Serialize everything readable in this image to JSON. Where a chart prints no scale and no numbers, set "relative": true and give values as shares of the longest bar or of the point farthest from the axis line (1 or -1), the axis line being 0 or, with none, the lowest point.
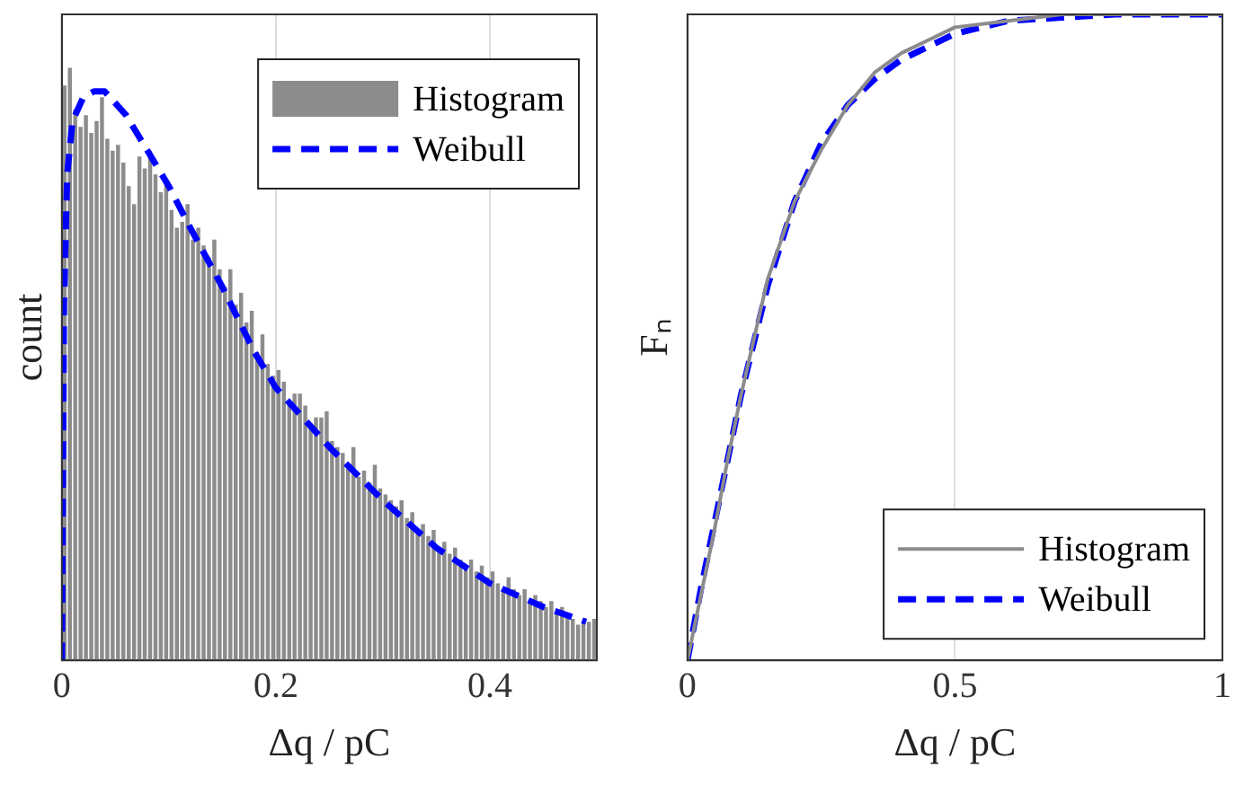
{
  "chart_data": [
    {
      "type": "histogram",
      "xlabel": "Δq / pC",
      "ylabel": "count",
      "relative": true,
      "xlim": [
        0,
        0.5
      ],
      "xticks": [
        0,
        0.2,
        0.4
      ],
      "tick_labels": "x",
      "grid": "x",
      "legend": "top right",
      "bins": [
        0,
        0.005,
        0.01,
        0.015,
        0.02,
        0.025,
        0.03,
        0.035,
        0.04,
        0.045,
        0.05,
        0.055,
        0.06,
        0.065,
        0.07,
        0.075,
        0.08,
        0.085,
        0.09,
        0.095,
        0.1,
        0.105,
        0.11,
        0.115,
        0.12,
        0.125,
        0.13,
        0.135,
        0.14,
        0.145,
        0.15,
        0.155,
        0.16,
        0.165,
        0.17,
        0.175,
        0.18,
        0.185,
        0.19,
        0.195,
        0.2,
        0.205,
        0.21,
        0.215,
        0.22,
        0.225,
        0.23,
        0.235,
        0.24,
        0.245,
        0.25,
        0.255,
        0.26,
        0.265,
        0.27,
        0.275,
        0.28,
        0.285,
        0.29,
        0.295,
        0.3,
        0.305,
        0.31,
        0.315,
        0.32,
        0.325,
        0.33,
        0.335,
        0.34,
        0.345,
        0.35,
        0.355,
        0.36,
        0.365,
        0.37,
        0.375,
        0.38,
        0.385,
        0.39,
        0.395,
        0.4,
        0.405,
        0.41,
        0.415,
        0.42,
        0.425,
        0.43,
        0.435,
        0.44,
        0.445,
        0.45,
        0.455,
        0.46,
        0.465,
        0.47,
        0.475,
        0.48,
        0.485,
        0.49,
        0.495,
        0.5
      ],
      "series": [
        {
          "name": "Histogram",
          "type": "histogram",
          "color": "#8c8c8c",
          "values": [
            0.97,
            1.0,
            0.93,
            0.9,
            0.92,
            0.89,
            0.91,
            0.95,
            0.88,
            0.86,
            0.87,
            0.84,
            0.8,
            0.77,
            0.85,
            0.83,
            0.86,
            0.82,
            0.79,
            0.81,
            0.76,
            0.73,
            0.74,
            0.77,
            0.71,
            0.73,
            0.7,
            0.68,
            0.71,
            0.66,
            0.63,
            0.66,
            0.6,
            0.62,
            0.57,
            0.59,
            0.52,
            0.55,
            0.5,
            0.48,
            0.49,
            0.47,
            0.44,
            0.45,
            0.45,
            0.43,
            0.4,
            0.41,
            0.41,
            0.42,
            0.37,
            0.36,
            0.35,
            0.33,
            0.36,
            0.31,
            0.32,
            0.3,
            0.33,
            0.29,
            0.28,
            0.27,
            0.26,
            0.27,
            0.24,
            0.25,
            0.22,
            0.23,
            0.21,
            0.22,
            0.19,
            0.2,
            0.18,
            0.19,
            0.17,
            0.16,
            0.17,
            0.15,
            0.16,
            0.14,
            0.15,
            0.13,
            0.12,
            0.14,
            0.12,
            0.11,
            0.12,
            0.1,
            0.11,
            0.1,
            0.09,
            0.1,
            0.08,
            0.09,
            0.08,
            0.07,
            0.06,
            0.065,
            0.065,
            0.07
          ]
        },
        {
          "name": "Weibull",
          "type": "line",
          "color": "#0000ff",
          "line_style": "dashed",
          "x": [
            0,
            0.002,
            0.005,
            0.01,
            0.02,
            0.03,
            0.04,
            0.06,
            0.08,
            0.1,
            0.12,
            0.15,
            0.18,
            0.2,
            0.25,
            0.3,
            0.35,
            0.4,
            0.45,
            0.49
          ],
          "values": [
            0,
            0.6,
            0.82,
            0.91,
            0.95,
            0.96,
            0.96,
            0.92,
            0.86,
            0.8,
            0.73,
            0.63,
            0.52,
            0.46,
            0.36,
            0.27,
            0.19,
            0.13,
            0.09,
            0.065
          ]
        }
      ]
    },
    {
      "type": "line",
      "xlabel": "Δq / pC",
      "ylabel": "Fₙ",
      "relative": true,
      "xlim": [
        0,
        1
      ],
      "xticks": [
        0,
        0.5,
        1
      ],
      "tick_labels": "x",
      "grid": "x",
      "legend": "bottom right",
      "x": [
        0,
        0.025,
        0.05,
        0.075,
        0.1,
        0.15,
        0.2,
        0.25,
        0.3,
        0.35,
        0.4,
        0.45,
        0.5,
        0.6,
        0.7,
        0.8,
        0.9,
        1
      ],
      "series": [
        {
          "name": "Histogram",
          "color": "#8c8c8c",
          "line_style": "solid",
          "values": [
            0,
            0.1,
            0.2,
            0.31,
            0.41,
            0.59,
            0.71,
            0.79,
            0.86,
            0.91,
            0.94,
            0.96,
            0.98,
            0.99,
            1,
            1,
            1,
            1
          ]
        },
        {
          "name": "Weibull",
          "color": "#0000ff",
          "line_style": "dashed",
          "values": [
            0,
            0.11,
            0.21,
            0.31,
            0.41,
            0.58,
            0.71,
            0.8,
            0.86,
            0.9,
            0.93,
            0.95,
            0.97,
            0.99,
            0.995,
            1,
            1,
            1
          ]
        }
      ]
    }
  ]
}
